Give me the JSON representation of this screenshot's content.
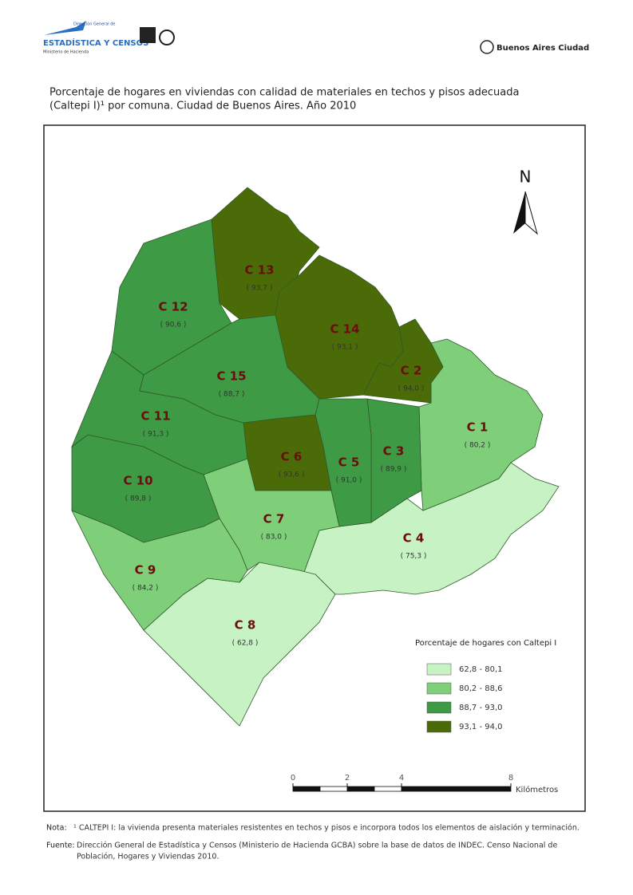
{
  "header": {
    "logo_line1": "Dirección General de",
    "logo_line2": "ESTADÍSTICA Y CENSOS",
    "logo_line3": "Ministerio de Hacienda",
    "brand": "Buenos Aires Ciudad"
  },
  "title": [
    "Porcentaje de hogares en viviendas con calidad de materiales en techos y pisos adecuada",
    "(Caltepi I)¹ por comuna. Ciudad de Buenos Aires. Año 2010"
  ],
  "map": {
    "north": "N",
    "comunas": [
      {
        "name": "C 1",
        "value": "( 80,2 )",
        "color": "#7fcf7a"
      },
      {
        "name": "C 2",
        "value": "( 94,0 )",
        "color": "#4b6a08"
      },
      {
        "name": "C 3",
        "value": "( 89,9 )",
        "color": "#3e9a45"
      },
      {
        "name": "C 4",
        "value": "( 75,3 )",
        "color": "#c6f2c4"
      },
      {
        "name": "C 5",
        "value": "( 91,0 )",
        "color": "#3e9a45"
      },
      {
        "name": "C 6",
        "value": "( 93,6 )",
        "color": "#4b6a08"
      },
      {
        "name": "C 7",
        "value": "( 83,0 )",
        "color": "#7fcf7a"
      },
      {
        "name": "C 8",
        "value": "( 62,8 )",
        "color": "#c6f2c4"
      },
      {
        "name": "C 9",
        "value": "( 84,2 )",
        "color": "#7fcf7a"
      },
      {
        "name": "C 10",
        "value": "( 89,8 )",
        "color": "#3e9a45"
      },
      {
        "name": "C 11",
        "value": "( 91,3 )",
        "color": "#3e9a45"
      },
      {
        "name": "C 12",
        "value": "( 90,6 )",
        "color": "#3e9a45"
      },
      {
        "name": "C 13",
        "value": "( 93,7 )",
        "color": "#4b6a08"
      },
      {
        "name": "C 14",
        "value": "( 93,1 )",
        "color": "#4b6a08"
      },
      {
        "name": "C 15",
        "value": "( 88,7 )",
        "color": "#3e9a45"
      }
    ],
    "legend": {
      "title": "Porcentaje de hogares con Caltepi I",
      "items": [
        {
          "label": "62,8 - 80,1",
          "color": "#c6f2c4"
        },
        {
          "label": "80,2 - 88,6",
          "color": "#7fcf7a"
        },
        {
          "label": "88,7 - 93,0",
          "color": "#3e9a45"
        },
        {
          "label": "93,1 - 94,0",
          "color": "#4b6a08"
        }
      ]
    },
    "scale": {
      "ticks": [
        "0",
        "2",
        "4",
        "8"
      ],
      "unit": "Kilómetros"
    }
  },
  "notes": {
    "nota_label": "Nota:",
    "nota": "¹ CALTEPI I: la vivienda presenta materiales resistentes en techos y pisos e incorpora todos los elementos de aislación y terminación.",
    "fuente_label": "Fuente:",
    "fuente": [
      "Dirección General de Estadística y Censos (Ministerio de Hacienda GCBA) sobre la base de datos de INDEC. Censo Nacional de",
      "Población, Hogares y Viviendas 2010."
    ]
  }
}
